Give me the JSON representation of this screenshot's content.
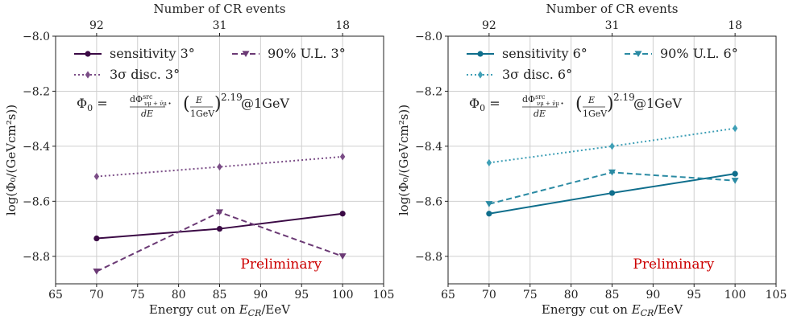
{
  "chart_data": [
    {
      "type": "line",
      "x": [
        70,
        85,
        100
      ],
      "xlabel_prefix": "Energy cut on ",
      "xlabel_var": "E",
      "xlabel_sub": "CR",
      "xlabel_unit": "/EeV",
      "ylabel": "log(Φ₀/(GeVcm²s))",
      "xlim": [
        65,
        105
      ],
      "ylim": [
        -8.9,
        -8.0
      ],
      "xticks": [
        65,
        70,
        75,
        80,
        85,
        90,
        95,
        100,
        105
      ],
      "yticks": [
        -8.8,
        -8.6,
        -8.4,
        -8.2,
        -8.0
      ],
      "top_axis": {
        "label": "Number of CR events",
        "ticks": [
          70,
          85,
          100
        ],
        "tick_labels": [
          "92",
          "31",
          "18"
        ]
      },
      "grid": true,
      "legend": "top",
      "annotation": "Preliminary",
      "formula": {
        "lhs": "Φ",
        "lhs_sub": "0",
        "eq": " = ",
        "dphi": "dΦ",
        "sup": "src",
        "sub": "νμ + ν̄μ",
        "de": "dE",
        "dot": " · ",
        "e": "E",
        "gev": "1GeV",
        "exp": "2.19",
        "at": "@1GeV"
      },
      "series": [
        {
          "name": "sensitivity 3°",
          "values": [
            -8.735,
            -8.7,
            -8.645
          ],
          "style": "solid",
          "marker": "circle",
          "color": "#3b0a45"
        },
        {
          "name": "90% U.L. 3°",
          "values": [
            -8.855,
            -8.64,
            -8.8
          ],
          "style": "dashed",
          "marker": "tri-down",
          "color": "#6b3a75"
        },
        {
          "name": "3σ disc. 3°",
          "values": [
            -8.51,
            -8.475,
            -8.438
          ],
          "style": "dotted",
          "marker": "diamond",
          "color": "#7a4c86"
        }
      ]
    },
    {
      "type": "line",
      "x": [
        70,
        85,
        100
      ],
      "xlabel_prefix": "Energy cut on ",
      "xlabel_var": "E",
      "xlabel_sub": "CR",
      "xlabel_unit": "/EeV",
      "ylabel": "log(Φ₀/(GeVcm²s))",
      "xlim": [
        65,
        105
      ],
      "ylim": [
        -8.9,
        -8.0
      ],
      "xticks": [
        65,
        70,
        75,
        80,
        85,
        90,
        95,
        100,
        105
      ],
      "yticks": [
        -8.8,
        -8.6,
        -8.4,
        -8.2,
        -8.0
      ],
      "top_axis": {
        "label": "Number of CR events",
        "ticks": [
          70,
          85,
          100
        ],
        "tick_labels": [
          "92",
          "31",
          "18"
        ]
      },
      "grid": true,
      "legend": "top",
      "annotation": "Preliminary",
      "formula": {
        "lhs": "Φ",
        "lhs_sub": "0",
        "eq": " = ",
        "dphi": "dΦ",
        "sup": "src",
        "sub": "νμ + ν̄μ",
        "de": "dE",
        "dot": " · ",
        "e": "E",
        "gev": "1GeV",
        "exp": "2.19",
        "at": "@1GeV"
      },
      "series": [
        {
          "name": "sensitivity 6°",
          "values": [
            -8.645,
            -8.57,
            -8.5
          ],
          "style": "solid",
          "marker": "circle",
          "color": "#0f6e8c"
        },
        {
          "name": "90% U.L. 6°",
          "values": [
            -8.61,
            -8.495,
            -8.525
          ],
          "style": "dashed",
          "marker": "tri-down",
          "color": "#2a8aa3"
        },
        {
          "name": "3σ disc. 6°",
          "values": [
            -8.46,
            -8.4,
            -8.335
          ],
          "style": "dotted",
          "marker": "diamond",
          "color": "#3f9fb6"
        }
      ]
    }
  ]
}
